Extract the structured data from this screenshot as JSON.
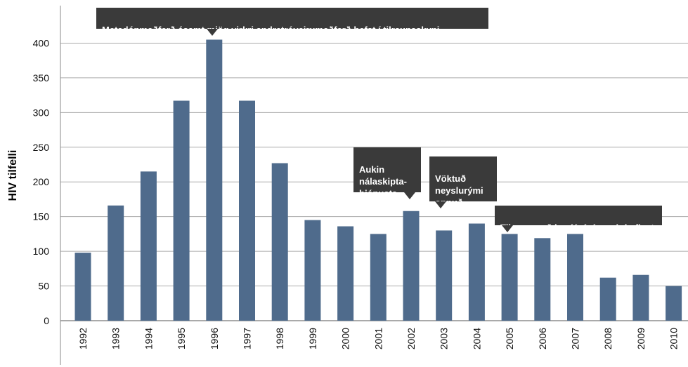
{
  "chart_data": {
    "type": "bar",
    "ylabel": "HIV tilfelli",
    "ylim": [
      0,
      450
    ],
    "yticks": [
      0,
      50,
      100,
      150,
      200,
      250,
      300,
      350,
      400
    ],
    "grid": true,
    "categories": [
      "1992",
      "1993",
      "1994",
      "1995",
      "1996",
      "1997",
      "1998",
      "1999",
      "2000",
      "2001",
      "2002",
      "2003",
      "2004",
      "2005",
      "2006",
      "2007",
      "2008",
      "2009",
      "2010"
    ],
    "values": [
      98,
      166,
      215,
      317,
      405,
      317,
      227,
      145,
      136,
      125,
      158,
      130,
      140,
      125,
      119,
      125,
      62,
      66,
      50
    ],
    "colors": {
      "bar": "#4f6b8c",
      "grid": "#aaaaaa",
      "annotation_bg": "#3a3a3a"
    },
    "annotations": [
      {
        "text": "Metadónmeðferð ásamt mjög virkri andretróveirumeðferð hefst í tilraunaskyni",
        "year": "1996"
      },
      {
        "text": "Aukin\nnálaskipta-\nþjónusta",
        "year": "2002"
      },
      {
        "text": "Vöktuð\nneyslurými\nopnuð",
        "year": "2003"
      },
      {
        "text": "Tilraun með heróínávísanair hefjast",
        "year": "2005"
      }
    ]
  }
}
